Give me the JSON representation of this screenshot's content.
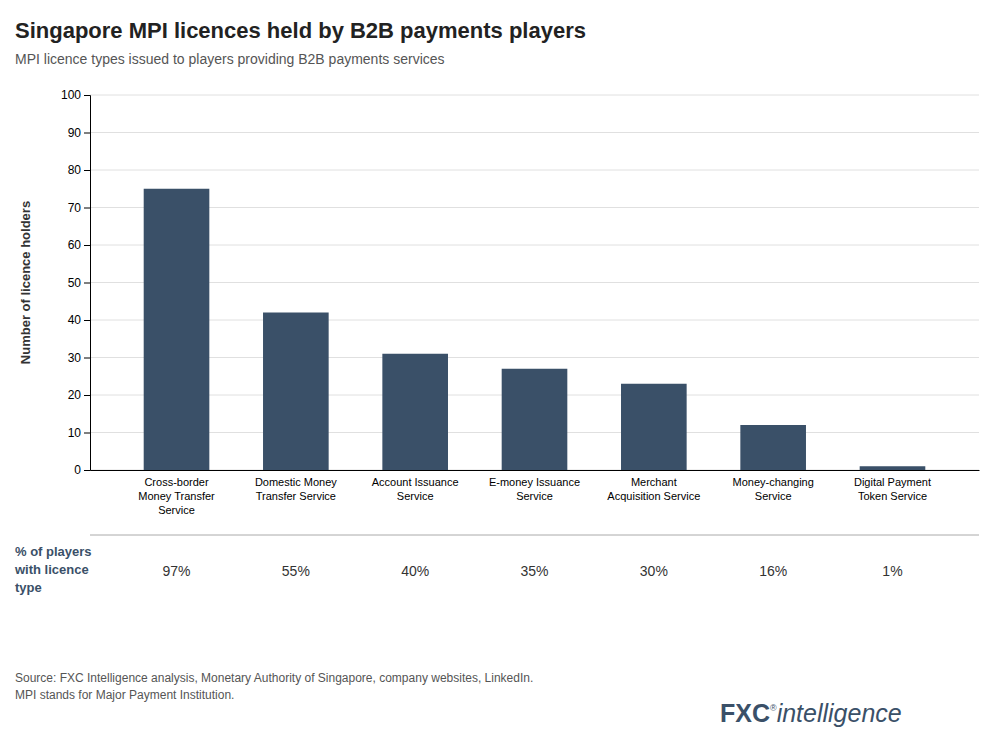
{
  "chart_data": {
    "type": "bar",
    "title": "Singapore MPI licences held by B2B payments players",
    "subtitle": "MPI licence types issued to players providing B2B payments services",
    "categories": [
      "Cross-border\nMoney Transfer\nService",
      "Domestic Money\nTransfer Service",
      "Account Issuance\nService",
      "E-money Issuance\nService",
      "Merchant\nAcquisition Service",
      "Money-changing\nService",
      "Digital Payment\nToken Service"
    ],
    "values": [
      75,
      42,
      31,
      27,
      23,
      12,
      1
    ],
    "color": "#3a5068",
    "ylabel": "Number of licence holders",
    "ylim": [
      0,
      100
    ],
    "yticks": [
      0,
      10,
      20,
      30,
      40,
      50,
      60,
      70,
      80,
      90,
      100
    ],
    "grid": true,
    "percentage_label": "% of players\nwith licence\ntype",
    "percentages": [
      "97%",
      "55%",
      "40%",
      "35%",
      "30%",
      "16%",
      "1%"
    ],
    "source": "Source: FXC Intelligence analysis, Monetary Authority of Singapore, company websites, LinkedIn.\nMPI stands for Major Payment Institution.",
    "logo": [
      "FXC",
      "®",
      "intelligence"
    ]
  }
}
